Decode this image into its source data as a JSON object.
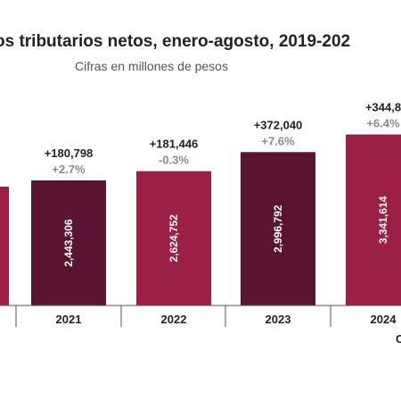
{
  "chart_data": {
    "type": "bar",
    "title": "os tributarios netos, enero-agosto, 2019-202",
    "subtitle": "Cifras en millones de pesos",
    "categories": [
      "2021",
      "2022",
      "2023",
      "2024"
    ],
    "values": [
      2443306,
      2624752,
      2996792,
      3341614
    ],
    "value_labels": [
      "2,443,306",
      "2,624,752",
      "2,996,792",
      "3,341,614"
    ],
    "abs_change_labels": [
      "+180,798",
      "+181,446",
      "+372,040",
      "+344,8"
    ],
    "pct_change_labels": [
      "+2.7%",
      "-0.3%",
      "+7.6%",
      "+6.4%"
    ],
    "series_colors": [
      "#5b1430",
      "#9c1f45",
      "#5b1430",
      "#9c1f45"
    ],
    "grid": false,
    "footer_fragment": "C"
  }
}
